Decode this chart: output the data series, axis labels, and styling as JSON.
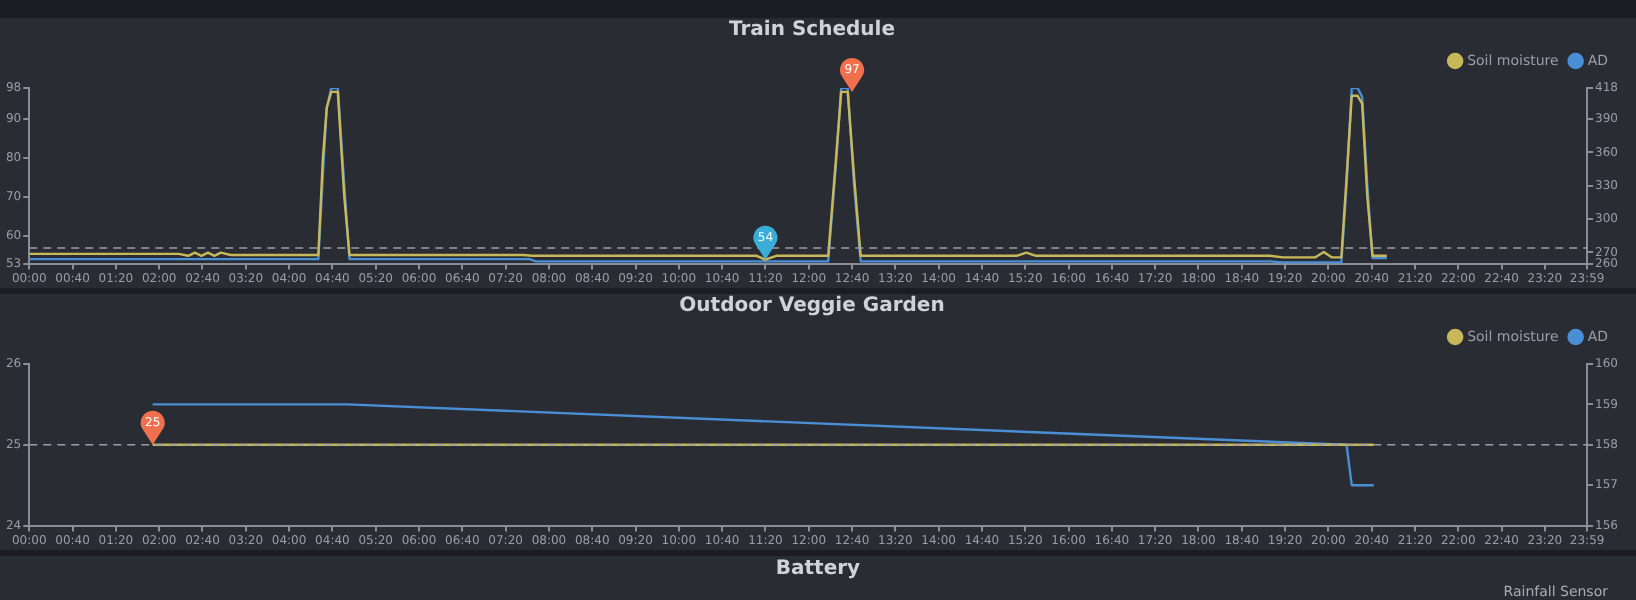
{
  "chart_data": [
    {
      "type": "line",
      "title": "Train Schedule",
      "legend": "top right",
      "grid": false,
      "xlim": [
        0,
        23.9833
      ],
      "xticks": [
        {
          "value": 0,
          "label": "00:00"
        },
        {
          "value": 0.6667,
          "label": "00:40"
        },
        {
          "value": 1.3333,
          "label": "01:20"
        },
        {
          "value": 2,
          "label": "02:00"
        },
        {
          "value": 2.6667,
          "label": "02:40"
        },
        {
          "value": 3.3333,
          "label": "03:20"
        },
        {
          "value": 4,
          "label": "04:00"
        },
        {
          "value": 4.6667,
          "label": "04:40"
        },
        {
          "value": 5.3333,
          "label": "05:20"
        },
        {
          "value": 6,
          "label": "06:00"
        },
        {
          "value": 6.6667,
          "label": "06:40"
        },
        {
          "value": 7.3333,
          "label": "07:20"
        },
        {
          "value": 8,
          "label": "08:00"
        },
        {
          "value": 8.6667,
          "label": "08:40"
        },
        {
          "value": 9.3333,
          "label": "09:20"
        },
        {
          "value": 10,
          "label": "10:00"
        },
        {
          "value": 10.6667,
          "label": "10:40"
        },
        {
          "value": 11.3333,
          "label": "11:20"
        },
        {
          "value": 12,
          "label": "12:00"
        },
        {
          "value": 12.6667,
          "label": "12:40"
        },
        {
          "value": 13.3333,
          "label": "13:20"
        },
        {
          "value": 14,
          "label": "14:00"
        },
        {
          "value": 14.6667,
          "label": "14:40"
        },
        {
          "value": 15.3333,
          "label": "15:20"
        },
        {
          "value": 16,
          "label": "16:00"
        },
        {
          "value": 16.6667,
          "label": "16:40"
        },
        {
          "value": 17.3333,
          "label": "17:20"
        },
        {
          "value": 18,
          "label": "18:00"
        },
        {
          "value": 18.6667,
          "label": "18:40"
        },
        {
          "value": 19.3333,
          "label": "19:20"
        },
        {
          "value": 20,
          "label": "20:00"
        },
        {
          "value": 20.6667,
          "label": "20:40"
        },
        {
          "value": 21.3333,
          "label": "21:20"
        },
        {
          "value": 22,
          "label": "22:00"
        },
        {
          "value": 22.6667,
          "label": "22:40"
        },
        {
          "value": 23.3333,
          "label": "23:20"
        },
        {
          "value": 23.9833,
          "label": "23:59"
        }
      ],
      "ylim": [
        53,
        98
      ],
      "yticks": [
        53,
        60,
        70,
        80,
        90,
        98
      ],
      "y2lim": [
        260,
        418
      ],
      "y2ticks": [
        260,
        270,
        300,
        330,
        360,
        390,
        418
      ],
      "ref_lines": [
        {
          "axis": "y",
          "value": 57,
          "line_style": "dashed"
        }
      ],
      "annotations": [
        {
          "text": "97",
          "x": 12.6667,
          "y": 97
        },
        {
          "text": "54",
          "x": 11.3333,
          "y": 54
        }
      ],
      "series": [
        {
          "name": "Soil moisture",
          "color": "#c8b85a",
          "x": [
            0,
            2.3,
            2.45,
            2.55,
            2.65,
            2.75,
            2.85,
            2.95,
            3.1,
            4.45,
            4.52,
            4.58,
            4.65,
            4.75,
            4.85,
            4.93,
            7.6,
            7.75,
            11.2,
            11.33,
            11.5,
            12.3,
            12.42,
            12.5,
            12.6,
            12.7,
            12.8,
            15.2,
            15.35,
            15.5,
            19.1,
            19.3,
            19.8,
            19.93,
            20.05,
            20.2,
            20.28,
            20.36,
            20.45,
            20.52,
            20.6,
            20.68,
            20.9
          ],
          "values": [
            55.5,
            55.5,
            55,
            55.8,
            55,
            55.8,
            55,
            55.8,
            55.2,
            55.2,
            80,
            93,
            97,
            97,
            70,
            55.2,
            55.2,
            55,
            55,
            54,
            55,
            55,
            80,
            97,
            97,
            75,
            55,
            55,
            55.8,
            55,
            55,
            54.6,
            54.6,
            56,
            54.6,
            54.6,
            75,
            96,
            96,
            94,
            70,
            55,
            55
          ]
        },
        {
          "name": "AD",
          "color": "#4a8fd6",
          "axis": "y2",
          "x": [
            0,
            4.45,
            4.52,
            4.58,
            4.65,
            4.75,
            4.85,
            4.93,
            7.7,
            7.8,
            12.3,
            12.42,
            12.5,
            12.6,
            12.7,
            12.8,
            19.1,
            19.3,
            20.2,
            20.28,
            20.36,
            20.45,
            20.52,
            20.6,
            20.68,
            20.9
          ],
          "values": [
            264,
            264,
            340,
            400,
            418,
            418,
            330,
            264,
            264,
            262,
            262,
            350,
            418,
            418,
            330,
            262,
            262,
            261,
            261,
            330,
            418,
            418,
            410,
            330,
            265,
            265
          ]
        }
      ]
    },
    {
      "type": "line",
      "title": "Outdoor Veggie Garden",
      "legend": "top right",
      "grid": false,
      "xlim": [
        0,
        23.9833
      ],
      "xticks": [
        {
          "value": 0,
          "label": "00:00"
        },
        {
          "value": 0.6667,
          "label": "00:40"
        },
        {
          "value": 1.3333,
          "label": "01:20"
        },
        {
          "value": 2,
          "label": "02:00"
        },
        {
          "value": 2.6667,
          "label": "02:40"
        },
        {
          "value": 3.3333,
          "label": "03:20"
        },
        {
          "value": 4,
          "label": "04:00"
        },
        {
          "value": 4.6667,
          "label": "04:40"
        },
        {
          "value": 5.3333,
          "label": "05:20"
        },
        {
          "value": 6,
          "label": "06:00"
        },
        {
          "value": 6.6667,
          "label": "06:40"
        },
        {
          "value": 7.3333,
          "label": "07:20"
        },
        {
          "value": 8,
          "label": "08:00"
        },
        {
          "value": 8.6667,
          "label": "08:40"
        },
        {
          "value": 9.3333,
          "label": "09:20"
        },
        {
          "value": 10,
          "label": "10:00"
        },
        {
          "value": 10.6667,
          "label": "10:40"
        },
        {
          "value": 11.3333,
          "label": "11:20"
        },
        {
          "value": 12,
          "label": "12:00"
        },
        {
          "value": 12.6667,
          "label": "12:40"
        },
        {
          "value": 13.3333,
          "label": "13:20"
        },
        {
          "value": 14,
          "label": "14:00"
        },
        {
          "value": 14.6667,
          "label": "14:40"
        },
        {
          "value": 15.3333,
          "label": "15:20"
        },
        {
          "value": 16,
          "label": "16:00"
        },
        {
          "value": 16.6667,
          "label": "16:40"
        },
        {
          "value": 17.3333,
          "label": "17:20"
        },
        {
          "value": 18,
          "label": "18:00"
        },
        {
          "value": 18.6667,
          "label": "18:40"
        },
        {
          "value": 19.3333,
          "label": "19:20"
        },
        {
          "value": 20,
          "label": "20:00"
        },
        {
          "value": 20.6667,
          "label": "20:40"
        },
        {
          "value": 21.3333,
          "label": "21:20"
        },
        {
          "value": 22,
          "label": "22:00"
        },
        {
          "value": 22.6667,
          "label": "22:40"
        },
        {
          "value": 23.3333,
          "label": "23:20"
        },
        {
          "value": 23.9833,
          "label": "23:59"
        }
      ],
      "ylim": [
        24,
        26
      ],
      "yticks": [
        24,
        25,
        26
      ],
      "y2lim": [
        156,
        160
      ],
      "y2ticks": [
        156,
        157,
        158,
        159,
        160
      ],
      "ref_lines": [
        {
          "axis": "y",
          "value": 25,
          "line_style": "dashed"
        }
      ],
      "annotations": [
        {
          "text": "25",
          "x": 1.9,
          "y": 25
        }
      ],
      "series": [
        {
          "name": "Soil moisture",
          "color": "#c8b85a",
          "x": [
            1.9,
            20.7
          ],
          "values": [
            25,
            25
          ]
        },
        {
          "name": "AD",
          "color": "#4a8fd6",
          "axis": "y2",
          "x": [
            1.9,
            4.9,
            20.28,
            20.36,
            20.7
          ],
          "values": [
            159,
            159,
            158,
            157,
            157
          ]
        }
      ]
    },
    {
      "type": "other",
      "title": "Battery",
      "annotations": [
        "Rainfall Sensor"
      ]
    }
  ]
}
